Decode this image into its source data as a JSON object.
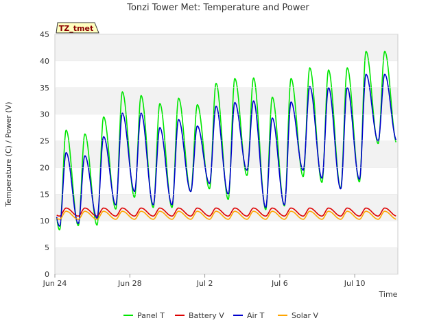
{
  "chart_data": {
    "type": "line",
    "title": "Tonzi Tower Met: Temperature and Power",
    "xlabel": "Time",
    "ylabel": "Temperature (C) / Power (V)",
    "badge": "TZ_tmet",
    "ylim": [
      0,
      45
    ],
    "yticks": [
      0,
      5,
      10,
      15,
      20,
      25,
      30,
      35,
      40,
      45
    ],
    "xlim_days": [
      0,
      18.3
    ],
    "xticks": [
      {
        "label": "Jun 24",
        "day": 0
      },
      {
        "label": "Jun 28",
        "day": 4
      },
      {
        "label": "Jul 2",
        "day": 8
      },
      {
        "label": "Jul 6",
        "day": 12
      },
      {
        "label": "Jul 10",
        "day": 16
      }
    ],
    "grid_bands": true,
    "legend_position": "bottom",
    "series": [
      {
        "name": "Panel T",
        "color": "#00e600",
        "daily_min": [
          8.3,
          9.1,
          9.2,
          12.2,
          14.4,
          12.5,
          12.5,
          15.5,
          16.0,
          14.0,
          18.5,
          12.1,
          12.8,
          18.3,
          17.2,
          16.1,
          17.3,
          24.5
        ],
        "daily_max": [
          27.0,
          26.3,
          29.5,
          34.2,
          33.5,
          32.0,
          33.0,
          31.8,
          35.8,
          36.7,
          36.8,
          33.2,
          36.7,
          38.7,
          38.3,
          38.7,
          41.8
        ]
      },
      {
        "name": "Battery V",
        "color": "#dd0000",
        "daily_min": [
          10.9,
          10.9,
          10.9,
          10.9,
          10.9,
          10.9,
          10.9,
          10.9,
          10.9,
          10.9,
          10.9,
          10.9,
          10.9,
          10.9,
          10.9,
          10.9,
          10.9,
          10.9
        ],
        "daily_max": [
          12.4,
          12.4,
          12.4,
          12.4,
          12.4,
          12.4,
          12.4,
          12.4,
          12.4,
          12.4,
          12.4,
          12.4,
          12.4,
          12.4,
          12.4,
          12.4,
          12.4
        ]
      },
      {
        "name": "Air T",
        "color": "#0000cc",
        "daily_min": [
          9.0,
          9.5,
          10.5,
          13.0,
          15.5,
          13.0,
          13.0,
          15.5,
          17.0,
          15.0,
          19.5,
          12.5,
          13.0,
          19.5,
          18.0,
          16.0,
          17.8,
          25.0
        ],
        "daily_max": [
          22.8,
          22.2,
          25.8,
          30.2,
          30.2,
          27.5,
          29.0,
          27.8,
          31.5,
          32.2,
          32.5,
          29.3,
          32.3,
          35.2,
          35.0,
          35.0,
          37.5
        ]
      },
      {
        "name": "Solar V",
        "color": "#ffa500",
        "daily_min": [
          10.3,
          10.3,
          10.3,
          10.3,
          10.3,
          10.3,
          10.3,
          10.3,
          10.3,
          10.3,
          10.3,
          10.3,
          10.3,
          10.3,
          10.3,
          10.3,
          10.3,
          10.3
        ],
        "daily_max": [
          11.8,
          11.8,
          11.8,
          11.8,
          11.8,
          11.8,
          11.8,
          11.8,
          11.8,
          11.8,
          11.8,
          11.8,
          11.8,
          11.8,
          11.8,
          11.8,
          11.8
        ]
      }
    ]
  }
}
